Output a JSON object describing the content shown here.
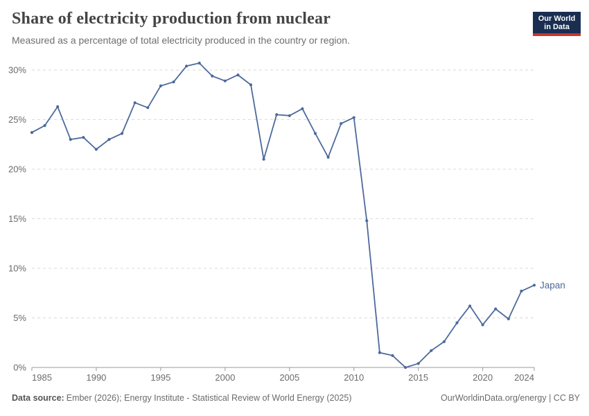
{
  "header": {
    "title": "Share of electricity production from nuclear",
    "subtitle": "Measured as a percentage of total electricity produced in the country or region."
  },
  "logo": {
    "line1": "Our World",
    "line2": "in Data",
    "bg_color": "#1A2E51",
    "accent_color": "#C9352E"
  },
  "chart_data": {
    "type": "line",
    "title": "Share of electricity production from nuclear",
    "xlabel": "",
    "ylabel": "",
    "xlim": [
      1985,
      2024
    ],
    "ylim": [
      0,
      30
    ],
    "grid": "horizontal-dashed",
    "grid_color": "#dadada",
    "axis_color": "#9a9a9a",
    "tick_label_color": "#6b6b6b",
    "x_ticks": [
      {
        "value": 1985,
        "label": "1985"
      },
      {
        "value": 1990,
        "label": "1990"
      },
      {
        "value": 1995,
        "label": "1995"
      },
      {
        "value": 2000,
        "label": "2000"
      },
      {
        "value": 2005,
        "label": "2005"
      },
      {
        "value": 2010,
        "label": "2010"
      },
      {
        "value": 2015,
        "label": "2015"
      },
      {
        "value": 2020,
        "label": "2020"
      },
      {
        "value": 2024,
        "label": "2024"
      }
    ],
    "y_ticks": [
      {
        "value": 0,
        "label": "0%"
      },
      {
        "value": 5,
        "label": "5%"
      },
      {
        "value": 10,
        "label": "10%"
      },
      {
        "value": 15,
        "label": "15%"
      },
      {
        "value": 20,
        "label": "20%"
      },
      {
        "value": 25,
        "label": "25%"
      },
      {
        "value": 30,
        "label": "30%"
      }
    ],
    "legend_position": "end-of-line",
    "series": [
      {
        "name": "Japan",
        "end_label": "Japan",
        "color": "#4C6A9C",
        "x": [
          1985,
          1986,
          1987,
          1988,
          1989,
          1990,
          1991,
          1992,
          1993,
          1994,
          1995,
          1996,
          1997,
          1998,
          1999,
          2000,
          2001,
          2002,
          2003,
          2004,
          2005,
          2006,
          2007,
          2008,
          2009,
          2010,
          2011,
          2012,
          2013,
          2014,
          2015,
          2016,
          2017,
          2018,
          2019,
          2020,
          2021,
          2022,
          2023,
          2024
        ],
        "values": [
          23.7,
          24.4,
          26.3,
          23.0,
          23.2,
          22.0,
          23.0,
          23.6,
          26.7,
          26.2,
          28.4,
          28.8,
          30.4,
          30.7,
          29.4,
          28.9,
          29.5,
          28.5,
          21.0,
          25.5,
          25.4,
          26.1,
          23.6,
          21.2,
          24.6,
          25.2,
          14.8,
          1.5,
          1.2,
          0.0,
          0.4,
          1.7,
          2.6,
          4.5,
          6.2,
          4.3,
          5.9,
          4.9,
          7.7,
          8.3
        ]
      }
    ]
  },
  "footer": {
    "source_label": "Data source:",
    "source_text": "Ember (2026); Energy Institute - Statistical Review of World Energy (2025)",
    "credit": "OurWorldinData.org/energy | CC BY"
  }
}
